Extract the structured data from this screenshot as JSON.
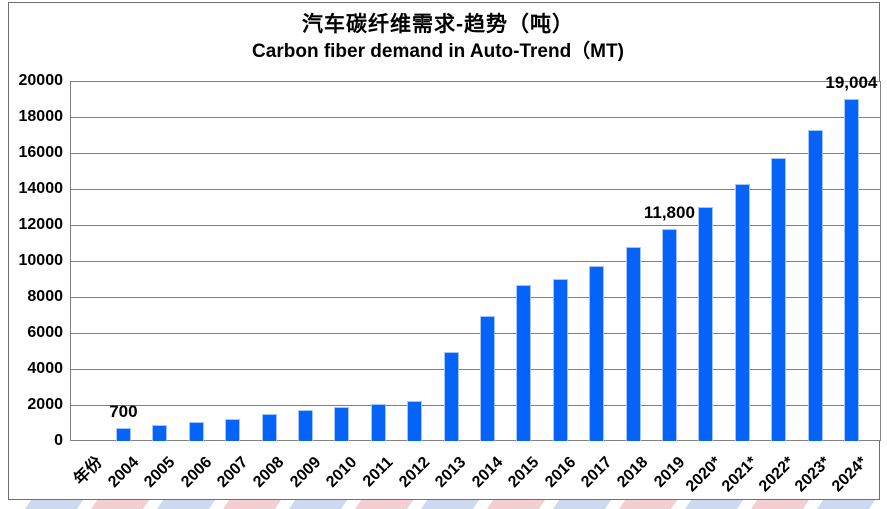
{
  "chart_data": {
    "type": "bar",
    "title": "汽车碳纤维需求-趋势（吨）",
    "subtitle": "Carbon fiber demand in Auto-Trend（MT)",
    "x_axis_title": "年份",
    "categories": [
      "年份",
      "2004",
      "2005",
      "2006",
      "2007",
      "2008",
      "2009",
      "2010",
      "2011",
      "2012",
      "2013",
      "2014",
      "2015",
      "2016",
      "2017",
      "2018",
      "2019",
      "2020*",
      "2021*",
      "2022*",
      "2023*",
      "2024*"
    ],
    "values": [
      null,
      700,
      900,
      1050,
      1250,
      1500,
      1750,
      1900,
      2050,
      2200,
      4950,
      6950,
      8650,
      9000,
      9750,
      10800,
      11800,
      12980,
      14278,
      15706,
      17276,
      19004
    ],
    "data_labels": [
      {
        "category": "2004",
        "text": "700"
      },
      {
        "category": "2019",
        "text": "11,800"
      },
      {
        "category": "2024*",
        "text": "19,004"
      }
    ],
    "ylim": [
      0,
      20000
    ],
    "ytick_interval": 2000,
    "yticks": [
      0,
      2000,
      4000,
      6000,
      8000,
      10000,
      12000,
      14000,
      16000,
      18000,
      20000
    ],
    "grid": true,
    "legend": "none",
    "xlabel": "",
    "ylabel": "",
    "bar_color": "#0663f7",
    "bar_border_color": "#a4c6f9",
    "gridline_color": "#808080",
    "axis_text_color": "#000000"
  },
  "decor": {
    "watermark_strip": {
      "start_x": 28,
      "spacing": 66,
      "width": 52,
      "count": 13,
      "skew_deg": -35,
      "colors": [
        "#ccd9ef",
        "#f3ced2"
      ]
    }
  }
}
